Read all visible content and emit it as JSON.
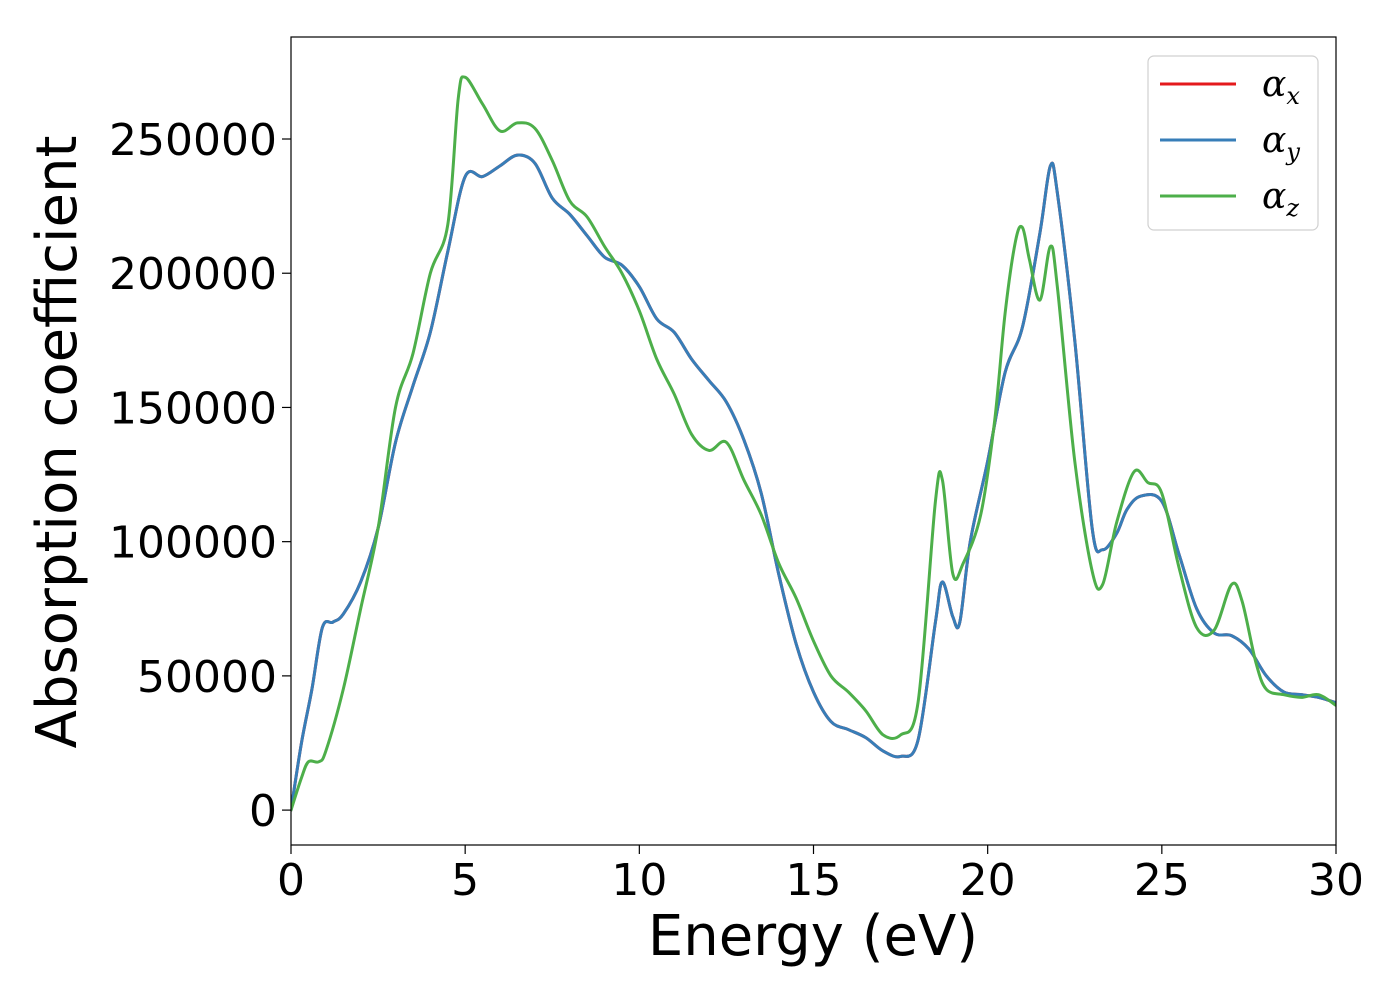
{
  "chart_data": {
    "type": "line",
    "xlabel": "Energy (eV)",
    "ylabel": "Absorption coefficient",
    "xlim": [
      0,
      30
    ],
    "ylim": [
      -13000,
      288000
    ],
    "xticks": [
      0,
      5,
      10,
      15,
      20,
      25,
      30
    ],
    "xtick_labels": [
      "0",
      "5",
      "10",
      "15",
      "20",
      "25",
      "30"
    ],
    "yticks": [
      0,
      50000,
      100000,
      150000,
      200000,
      250000
    ],
    "ytick_labels": [
      "0",
      "50000",
      "100000",
      "150000",
      "200000",
      "250000"
    ],
    "grid": false,
    "legend_position": "top-right",
    "series": [
      {
        "name": "α_x",
        "symbol": "α",
        "subscript": "x",
        "color": "#e41a1c",
        "x": [
          0,
          0.3,
          0.6,
          0.9,
          1.2,
          1.5,
          2,
          2.5,
          3,
          3.5,
          4,
          4.5,
          5,
          5.5,
          6,
          6.5,
          7,
          7.5,
          8,
          8.5,
          9,
          9.5,
          10,
          10.5,
          11,
          11.5,
          12,
          12.5,
          13,
          13.5,
          14,
          14.5,
          15,
          15.5,
          16,
          16.5,
          17,
          17.5,
          18,
          18.5,
          18.7,
          19,
          19.2,
          19.5,
          20,
          20.5,
          21,
          21.5,
          21.8,
          22,
          22.5,
          23,
          23.3,
          23.7,
          24,
          24.4,
          25,
          25.5,
          26,
          26.5,
          27,
          27.5,
          28,
          28.5,
          29,
          29.5,
          30
        ],
        "y": [
          0,
          25000,
          45000,
          68000,
          70000,
          73000,
          85000,
          105000,
          137000,
          158000,
          178000,
          208000,
          236000,
          236000,
          240000,
          244000,
          241000,
          228000,
          222000,
          214000,
          206000,
          203000,
          195000,
          183000,
          178000,
          168000,
          160000,
          152000,
          138000,
          118000,
          88000,
          62000,
          44000,
          33000,
          30000,
          27000,
          22000,
          20000,
          26000,
          70000,
          85000,
          72000,
          70000,
          100000,
          130000,
          163000,
          180000,
          215000,
          240000,
          230000,
          175000,
          105000,
          97000,
          103000,
          112000,
          117000,
          115000,
          95000,
          75000,
          66000,
          65000,
          60000,
          50000,
          44000,
          43000,
          42000,
          40000
        ]
      },
      {
        "name": "α_y",
        "symbol": "α",
        "subscript": "y",
        "color": "#377eb8",
        "x": [
          0,
          0.3,
          0.6,
          0.9,
          1.2,
          1.5,
          2,
          2.5,
          3,
          3.5,
          4,
          4.5,
          5,
          5.5,
          6,
          6.5,
          7,
          7.5,
          8,
          8.5,
          9,
          9.5,
          10,
          10.5,
          11,
          11.5,
          12,
          12.5,
          13,
          13.5,
          14,
          14.5,
          15,
          15.5,
          16,
          16.5,
          17,
          17.5,
          18,
          18.5,
          18.7,
          19,
          19.2,
          19.5,
          20,
          20.5,
          21,
          21.5,
          21.8,
          22,
          22.5,
          23,
          23.3,
          23.7,
          24,
          24.4,
          25,
          25.5,
          26,
          26.5,
          27,
          27.5,
          28,
          28.5,
          29,
          29.5,
          30
        ],
        "y": [
          0,
          25000,
          45000,
          68000,
          70000,
          73000,
          85000,
          105000,
          137000,
          158000,
          178000,
          208000,
          236000,
          236000,
          240000,
          244000,
          241000,
          228000,
          222000,
          214000,
          206000,
          203000,
          195000,
          183000,
          178000,
          168000,
          160000,
          152000,
          138000,
          118000,
          88000,
          62000,
          44000,
          33000,
          30000,
          27000,
          22000,
          20000,
          26000,
          70000,
          85000,
          72000,
          70000,
          100000,
          130000,
          163000,
          180000,
          215000,
          240000,
          230000,
          175000,
          105000,
          97000,
          103000,
          112000,
          117000,
          115000,
          95000,
          75000,
          66000,
          65000,
          60000,
          50000,
          44000,
          43000,
          42000,
          40000
        ]
      },
      {
        "name": "α_z",
        "symbol": "α",
        "subscript": "z",
        "color": "#4daf4a",
        "x": [
          0,
          0.3,
          0.5,
          0.8,
          1,
          1.5,
          2,
          2.5,
          3,
          3.5,
          4,
          4.5,
          4.8,
          5,
          5.5,
          6,
          6.5,
          7,
          7.5,
          8,
          8.5,
          9,
          9.5,
          10,
          10.5,
          11,
          11.5,
          12,
          12.5,
          13,
          13.5,
          14,
          14.5,
          15,
          15.5,
          16,
          16.5,
          17,
          17.5,
          18,
          18.5,
          18.7,
          19,
          19.3,
          19.8,
          20.2,
          20.5,
          20.8,
          21,
          21.2,
          21.5,
          21.8,
          22,
          22.5,
          23,
          23.3,
          23.7,
          24.2,
          24.6,
          25,
          25.5,
          26,
          26.5,
          27,
          27.3,
          27.7,
          28,
          28.5,
          29,
          29.5,
          30
        ],
        "y": [
          0,
          12000,
          18000,
          18000,
          22000,
          45000,
          75000,
          105000,
          150000,
          170000,
          200000,
          218000,
          265000,
          273000,
          263000,
          253000,
          256000,
          254000,
          242000,
          227000,
          221000,
          210000,
          200000,
          186000,
          168000,
          155000,
          140000,
          134000,
          137000,
          123000,
          110000,
          92000,
          79000,
          63000,
          50000,
          44000,
          37000,
          28000,
          28000,
          40000,
          115000,
          123000,
          88000,
          92000,
          110000,
          145000,
          185000,
          212000,
          217000,
          205000,
          190000,
          210000,
          195000,
          130000,
          89000,
          84000,
          107000,
          126000,
          122000,
          118000,
          90000,
          68000,
          67000,
          84000,
          78000,
          55000,
          45000,
          43000,
          42000,
          43000,
          39000
        ]
      }
    ]
  }
}
